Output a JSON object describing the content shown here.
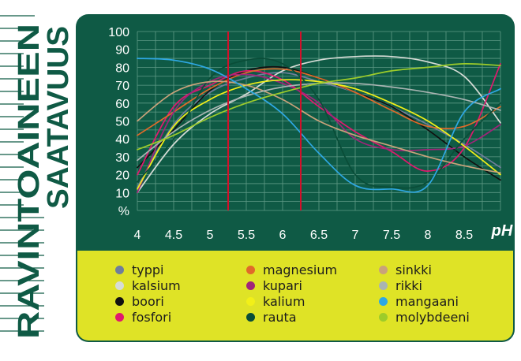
{
  "side_title": {
    "line1": "RAVINTOAINEEN",
    "line2": "SAATAVUUS"
  },
  "chart_data": {
    "type": "line",
    "title": "",
    "xlabel": "pH",
    "ylabel": "%",
    "xlim": [
      4,
      9
    ],
    "ylim": [
      0,
      100
    ],
    "x_ticks": [
      4,
      4.5,
      5,
      5.5,
      6,
      6.5,
      7,
      7.5,
      8,
      8.5
    ],
    "x_tick_labels": [
      "4",
      "4.5",
      "5",
      "5.5",
      "6",
      "6.5",
      "7",
      "7.5",
      "8",
      "8.5"
    ],
    "y_ticks": [
      10,
      20,
      30,
      40,
      50,
      60,
      70,
      80,
      90,
      100
    ],
    "y_tick_labels": [
      "10",
      "20",
      "30",
      "40",
      "50",
      "60",
      "70",
      "80",
      "90",
      "100"
    ],
    "y_unit_label": "%",
    "grid": true,
    "optimal_range_lines": [
      5.25,
      6.25
    ],
    "legend_position": "bottom",
    "series": [
      {
        "name": "typpi",
        "color": "#6f7e9c",
        "points": [
          [
            4,
            13
          ],
          [
            4.5,
            48
          ],
          [
            5,
            66
          ],
          [
            5.5,
            74
          ],
          [
            6,
            77
          ],
          [
            6.5,
            72
          ],
          [
            7,
            66
          ],
          [
            7.5,
            58
          ],
          [
            8,
            48
          ],
          [
            8.5,
            37
          ],
          [
            9,
            24
          ]
        ]
      },
      {
        "name": "kalsium",
        "color": "#d6dcd6",
        "points": [
          [
            4,
            10
          ],
          [
            4.5,
            37
          ],
          [
            5,
            54
          ],
          [
            5.5,
            65
          ],
          [
            6,
            78
          ],
          [
            6.5,
            84
          ],
          [
            7,
            86
          ],
          [
            7.5,
            86
          ],
          [
            8,
            83
          ],
          [
            8.5,
            75
          ],
          [
            9,
            49
          ]
        ]
      },
      {
        "name": "boori",
        "color": "#111111",
        "points": [
          [
            4,
            24
          ],
          [
            4.5,
            45
          ],
          [
            5,
            67
          ],
          [
            5.5,
            78
          ],
          [
            6,
            80
          ],
          [
            6.5,
            74
          ],
          [
            7,
            66
          ],
          [
            7.5,
            58
          ],
          [
            8,
            45
          ],
          [
            8.5,
            30
          ],
          [
            9,
            17
          ]
        ]
      },
      {
        "name": "fosfori",
        "color": "#e0186e",
        "points": [
          [
            4,
            20
          ],
          [
            4.5,
            58
          ],
          [
            5,
            70
          ],
          [
            5.5,
            78
          ],
          [
            6,
            73
          ],
          [
            6.5,
            58
          ],
          [
            7,
            44
          ],
          [
            7.5,
            33
          ],
          [
            8,
            22
          ],
          [
            8.5,
            35
          ],
          [
            9,
            82
          ]
        ]
      },
      {
        "name": "magnesium",
        "color": "#e06a2a",
        "points": [
          [
            4,
            42
          ],
          [
            4.5,
            55
          ],
          [
            5,
            68
          ],
          [
            5.5,
            77
          ],
          [
            6,
            79
          ],
          [
            6.5,
            74
          ],
          [
            7,
            66
          ],
          [
            7.5,
            56
          ],
          [
            8,
            47
          ],
          [
            8.5,
            47
          ],
          [
            9,
            58
          ]
        ]
      },
      {
        "name": "kupari",
        "color": "#a0247a",
        "points": [
          [
            4,
            10
          ],
          [
            4.5,
            55
          ],
          [
            5,
            72
          ],
          [
            5.5,
            76
          ],
          [
            6,
            71
          ],
          [
            6.5,
            60
          ],
          [
            7,
            40
          ],
          [
            7.5,
            34
          ],
          [
            8,
            34
          ],
          [
            8.5,
            36
          ],
          [
            9,
            48
          ]
        ]
      },
      {
        "name": "kalium",
        "color": "#f2f018",
        "points": [
          [
            4,
            12
          ],
          [
            4.5,
            47
          ],
          [
            5,
            62
          ],
          [
            5.5,
            70
          ],
          [
            6,
            73
          ],
          [
            6.5,
            72
          ],
          [
            7,
            68
          ],
          [
            7.5,
            60
          ],
          [
            8,
            50
          ],
          [
            8.5,
            36
          ],
          [
            9,
            20
          ]
        ]
      },
      {
        "name": "rauta",
        "color": "#0a4d38",
        "points": [
          [
            4,
            16
          ],
          [
            4.5,
            40
          ],
          [
            5,
            74
          ],
          [
            5.5,
            84
          ],
          [
            6,
            82
          ],
          [
            6.5,
            62
          ],
          [
            7,
            20
          ],
          [
            7.5,
            13
          ],
          [
            8,
            16
          ],
          [
            8.5,
            40
          ],
          [
            9,
            60
          ]
        ]
      },
      {
        "name": "sinkki",
        "color": "#c9a27a",
        "points": [
          [
            4,
            50
          ],
          [
            4.5,
            66
          ],
          [
            5,
            72
          ],
          [
            5.5,
            70
          ],
          [
            6,
            62
          ],
          [
            6.5,
            50
          ],
          [
            7,
            42
          ],
          [
            7.5,
            36
          ],
          [
            8,
            30
          ],
          [
            8.5,
            25
          ],
          [
            9,
            21
          ]
        ]
      },
      {
        "name": "rikki",
        "color": "#a9b4b2",
        "points": [
          [
            4,
            28
          ],
          [
            4.5,
            44
          ],
          [
            5,
            56
          ],
          [
            5.5,
            64
          ],
          [
            6,
            69
          ],
          [
            6.5,
            71
          ],
          [
            7,
            71
          ],
          [
            7.5,
            69
          ],
          [
            8,
            66
          ],
          [
            8.5,
            62
          ],
          [
            9,
            56
          ]
        ]
      },
      {
        "name": "mangaani",
        "color": "#2ea8e4",
        "points": [
          [
            4,
            85
          ],
          [
            4.5,
            84
          ],
          [
            5,
            79
          ],
          [
            5.5,
            68
          ],
          [
            6,
            54
          ],
          [
            6.5,
            32
          ],
          [
            7,
            14
          ],
          [
            7.5,
            12
          ],
          [
            8,
            14
          ],
          [
            8.5,
            55
          ],
          [
            9,
            68
          ]
        ]
      },
      {
        "name": "molybdeeni",
        "color": "#9dcc2a",
        "points": [
          [
            4,
            34
          ],
          [
            4.5,
            42
          ],
          [
            5,
            52
          ],
          [
            5.5,
            60
          ],
          [
            6,
            66
          ],
          [
            6.5,
            71
          ],
          [
            7,
            74
          ],
          [
            7.5,
            78
          ],
          [
            8,
            80
          ],
          [
            8.5,
            82
          ],
          [
            9,
            81
          ]
        ]
      }
    ]
  }
}
